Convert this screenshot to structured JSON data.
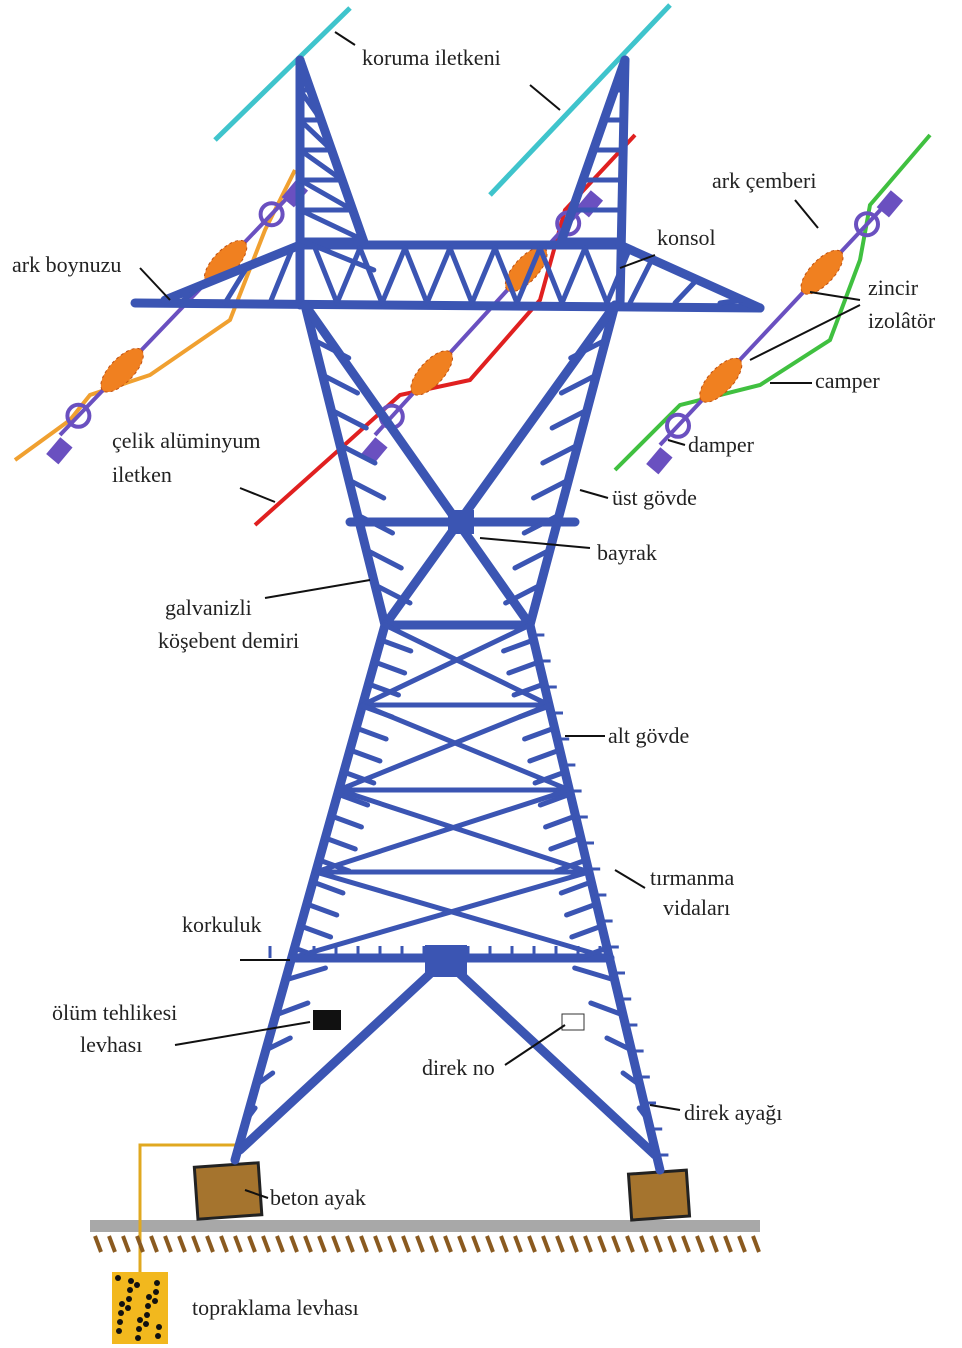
{
  "labels": [
    {
      "lines": [
        "koruma iletkeni"
      ]
    },
    {
      "lines": [
        "ark çemberi"
      ]
    },
    {
      "lines": [
        "konsol"
      ]
    },
    {
      "lines": [
        "zincir",
        "izolâtör"
      ]
    },
    {
      "lines": [
        "ark boynuzu"
      ]
    },
    {
      "lines": [
        "camper"
      ]
    },
    {
      "lines": [
        "damper"
      ]
    },
    {
      "lines": [
        "çelik alüminyum",
        "iletken"
      ]
    },
    {
      "lines": [
        "üst gövde"
      ]
    },
    {
      "lines": [
        "bayrak"
      ]
    },
    {
      "lines": [
        "galvanizli",
        "köşebent demiri"
      ]
    },
    {
      "lines": [
        "alt gövde"
      ]
    },
    {
      "lines": [
        "tırmanma",
        "vidaları"
      ]
    },
    {
      "lines": [
        "korkuluk"
      ]
    },
    {
      "lines": [
        "ölüm tehlikesi",
        "levhası"
      ]
    },
    {
      "lines": [
        "direk no"
      ]
    },
    {
      "lines": [
        "direk ayağı"
      ]
    },
    {
      "lines": [
        "beton ayak"
      ]
    },
    {
      "lines": [
        "topraklama levhası"
      ]
    }
  ]
}
